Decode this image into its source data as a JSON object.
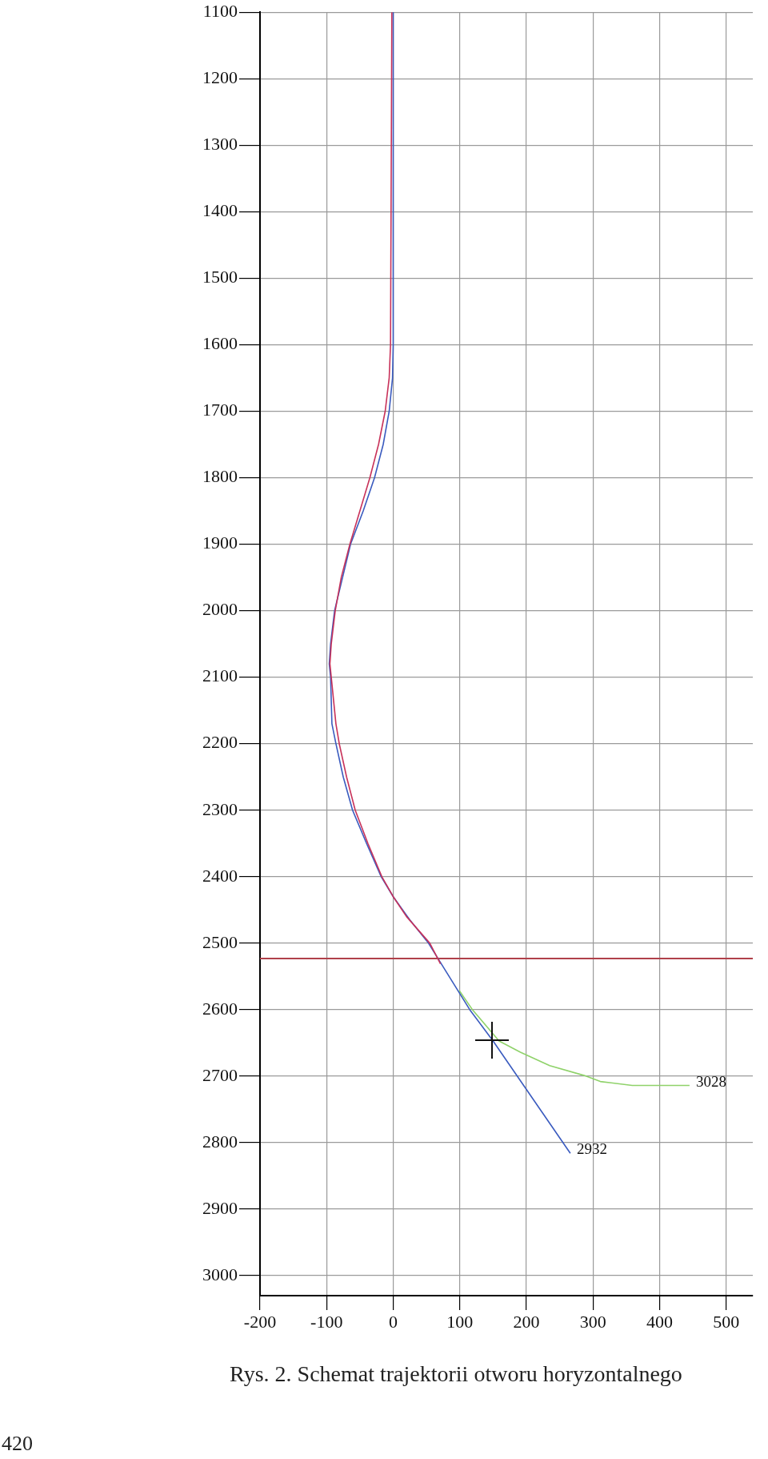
{
  "chart_data": {
    "type": "line",
    "title": "Rys. 2. Schemat trajektorii otworu horyzontalnego",
    "xlim": [
      -200,
      540
    ],
    "ylim": [
      3030,
      1100
    ],
    "xticks": [
      -200,
      -100,
      0,
      100,
      200,
      300,
      400,
      500
    ],
    "yticks": [
      1100,
      1200,
      1300,
      1400,
      1500,
      1600,
      1700,
      1800,
      1900,
      2000,
      2100,
      2200,
      2300,
      2400,
      2500,
      2600,
      2700,
      2800,
      2900,
      3000
    ],
    "grid": true,
    "legend": false,
    "marker": "none",
    "line_style": "solid",
    "series": [
      {
        "type": "line",
        "color": "#c8325a",
        "x": [
          -2,
          -4,
          -6,
          -12,
          -22,
          -35,
          -50,
          -65,
          -78,
          -87,
          -93,
          -95,
          -93,
          -86,
          -81,
          -70,
          -57,
          -38,
          -17,
          0,
          20,
          55,
          71
        ],
        "values": [
          1100,
          1600,
          1650,
          1700,
          1750,
          1800,
          1850,
          1900,
          1950,
          2000,
          2050,
          2080,
          2100,
          2170,
          2200,
          2250,
          2300,
          2350,
          2400,
          2430,
          2460,
          2500,
          2531
        ]
      },
      {
        "type": "line",
        "color": "#3a5bbf",
        "x": [
          0,
          0,
          -1,
          -6,
          -15,
          -28,
          -45,
          -64,
          -76,
          -88,
          -94,
          -96,
          -94,
          -92,
          -86,
          -75,
          -61,
          -40,
          -18,
          0,
          25,
          53,
          115,
          150,
          266
        ],
        "values": [
          1100,
          1600,
          1650,
          1700,
          1750,
          1800,
          1850,
          1900,
          1950,
          2000,
          2050,
          2080,
          2100,
          2170,
          2200,
          2250,
          2300,
          2350,
          2400,
          2430,
          2465,
          2500,
          2600,
          2647,
          2816
        ]
      },
      {
        "type": "line",
        "color": "#8fd26a",
        "x": [
          99,
          119,
          159,
          191,
          235,
          287,
          311,
          359,
          445
        ],
        "values": [
          2571,
          2600,
          2647,
          2664,
          2684,
          2699,
          2708,
          2714,
          2714
        ]
      }
    ],
    "ref_lines": [
      {
        "axis": "y",
        "value": 2523,
        "color": "#b0404a"
      }
    ],
    "annotations": [
      {
        "text": "2932",
        "x": 266,
        "y": 2816
      },
      {
        "text": "3028",
        "x": 445,
        "y": 2714
      },
      "420"
    ]
  }
}
